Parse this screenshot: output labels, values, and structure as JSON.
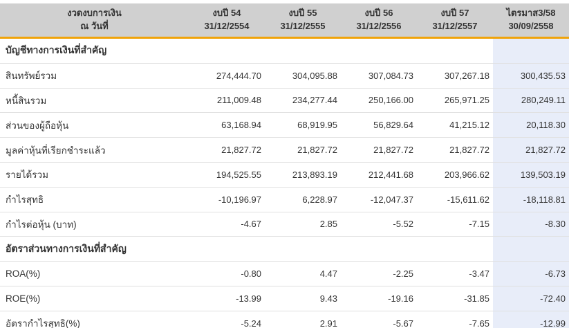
{
  "colors": {
    "header_bg": "#d0d0d0",
    "accent_orange": "#f0a30a",
    "highlight_column_bg": "#e8edf9",
    "row_divider": "#e0e0e0",
    "text": "#333333"
  },
  "table": {
    "header": {
      "period": {
        "line1": "งวดงบการเงิน",
        "line2": "ณ วันที่"
      },
      "columns": [
        {
          "line1": "งบปี 54",
          "line2": "31/12/2554"
        },
        {
          "line1": "งบปี 55",
          "line2": "31/12/2555"
        },
        {
          "line1": "งบปี 56",
          "line2": "31/12/2556"
        },
        {
          "line1": "งบปี 57",
          "line2": "31/12/2557"
        },
        {
          "line1": "ไตรมาส3/58",
          "line2": "30/09/2558"
        }
      ]
    },
    "rows": [
      {
        "label": "บัญชีทางการเงินที่สำคัญ",
        "section": true,
        "values": [
          "",
          "",
          "",
          "",
          ""
        ]
      },
      {
        "label": "สินทรัพย์รวม",
        "values": [
          "274,444.70",
          "304,095.88",
          "307,084.73",
          "307,267.18",
          "300,435.53"
        ]
      },
      {
        "label": "หนี้สินรวม",
        "values": [
          "211,009.48",
          "234,277.44",
          "250,166.00",
          "265,971.25",
          "280,249.11"
        ]
      },
      {
        "label": "ส่วนของผู้ถือหุ้น",
        "values": [
          "63,168.94",
          "68,919.95",
          "56,829.64",
          "41,215.12",
          "20,118.30"
        ]
      },
      {
        "label": "มูลค่าหุ้นที่เรียกชำระแล้ว",
        "values": [
          "21,827.72",
          "21,827.72",
          "21,827.72",
          "21,827.72",
          "21,827.72"
        ]
      },
      {
        "label": "รายได้รวม",
        "values": [
          "194,525.55",
          "213,893.19",
          "212,441.68",
          "203,966.62",
          "139,503.19"
        ]
      },
      {
        "label": "กำไรสุทธิ",
        "values": [
          "-10,196.97",
          "6,228.97",
          "-12,047.37",
          "-15,611.62",
          "-18,118.81"
        ]
      },
      {
        "label": "กำไรต่อหุ้น (บาท)",
        "values": [
          "-4.67",
          "2.85",
          "-5.52",
          "-7.15",
          "-8.30"
        ]
      },
      {
        "label": "อัตราส่วนทางการเงินที่สำคัญ",
        "section": true,
        "values": [
          "",
          "",
          "",
          "",
          ""
        ]
      },
      {
        "label": "ROA(%)",
        "values": [
          "-0.80",
          "4.47",
          "-2.25",
          "-3.47",
          "-6.73"
        ]
      },
      {
        "label": "ROE(%)",
        "values": [
          "-13.99",
          "9.43",
          "-19.16",
          "-31.85",
          "-72.40"
        ]
      },
      {
        "label": "อัตรากำไรสุทธิ(%)",
        "values": [
          "-5.24",
          "2.91",
          "-5.67",
          "-7.65",
          "-12.99"
        ]
      }
    ]
  }
}
